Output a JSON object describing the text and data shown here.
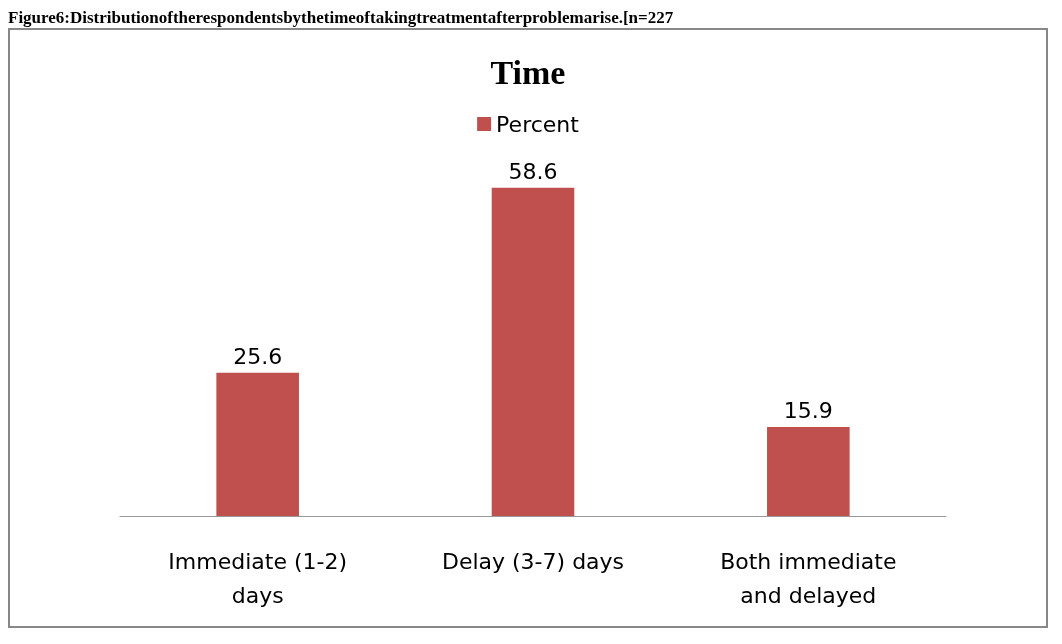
{
  "chart_data": {
    "type": "bar",
    "title": "Time",
    "annotations": [
      "Figure6:Distributionoftherespondentsbythetimeoftakingtreatmentafterproblemarise.[n=227"
    ],
    "categories": [
      "Immediate (1-2)\ndays",
      "Delay (3-7) days",
      "Both immediate\nand delayed"
    ],
    "series": [
      {
        "name": "Percent",
        "color": "#c0504d",
        "values": [
          25.6,
          58.6,
          15.9
        ]
      }
    ],
    "data_labels": true,
    "legend": "top",
    "grid": false
  }
}
